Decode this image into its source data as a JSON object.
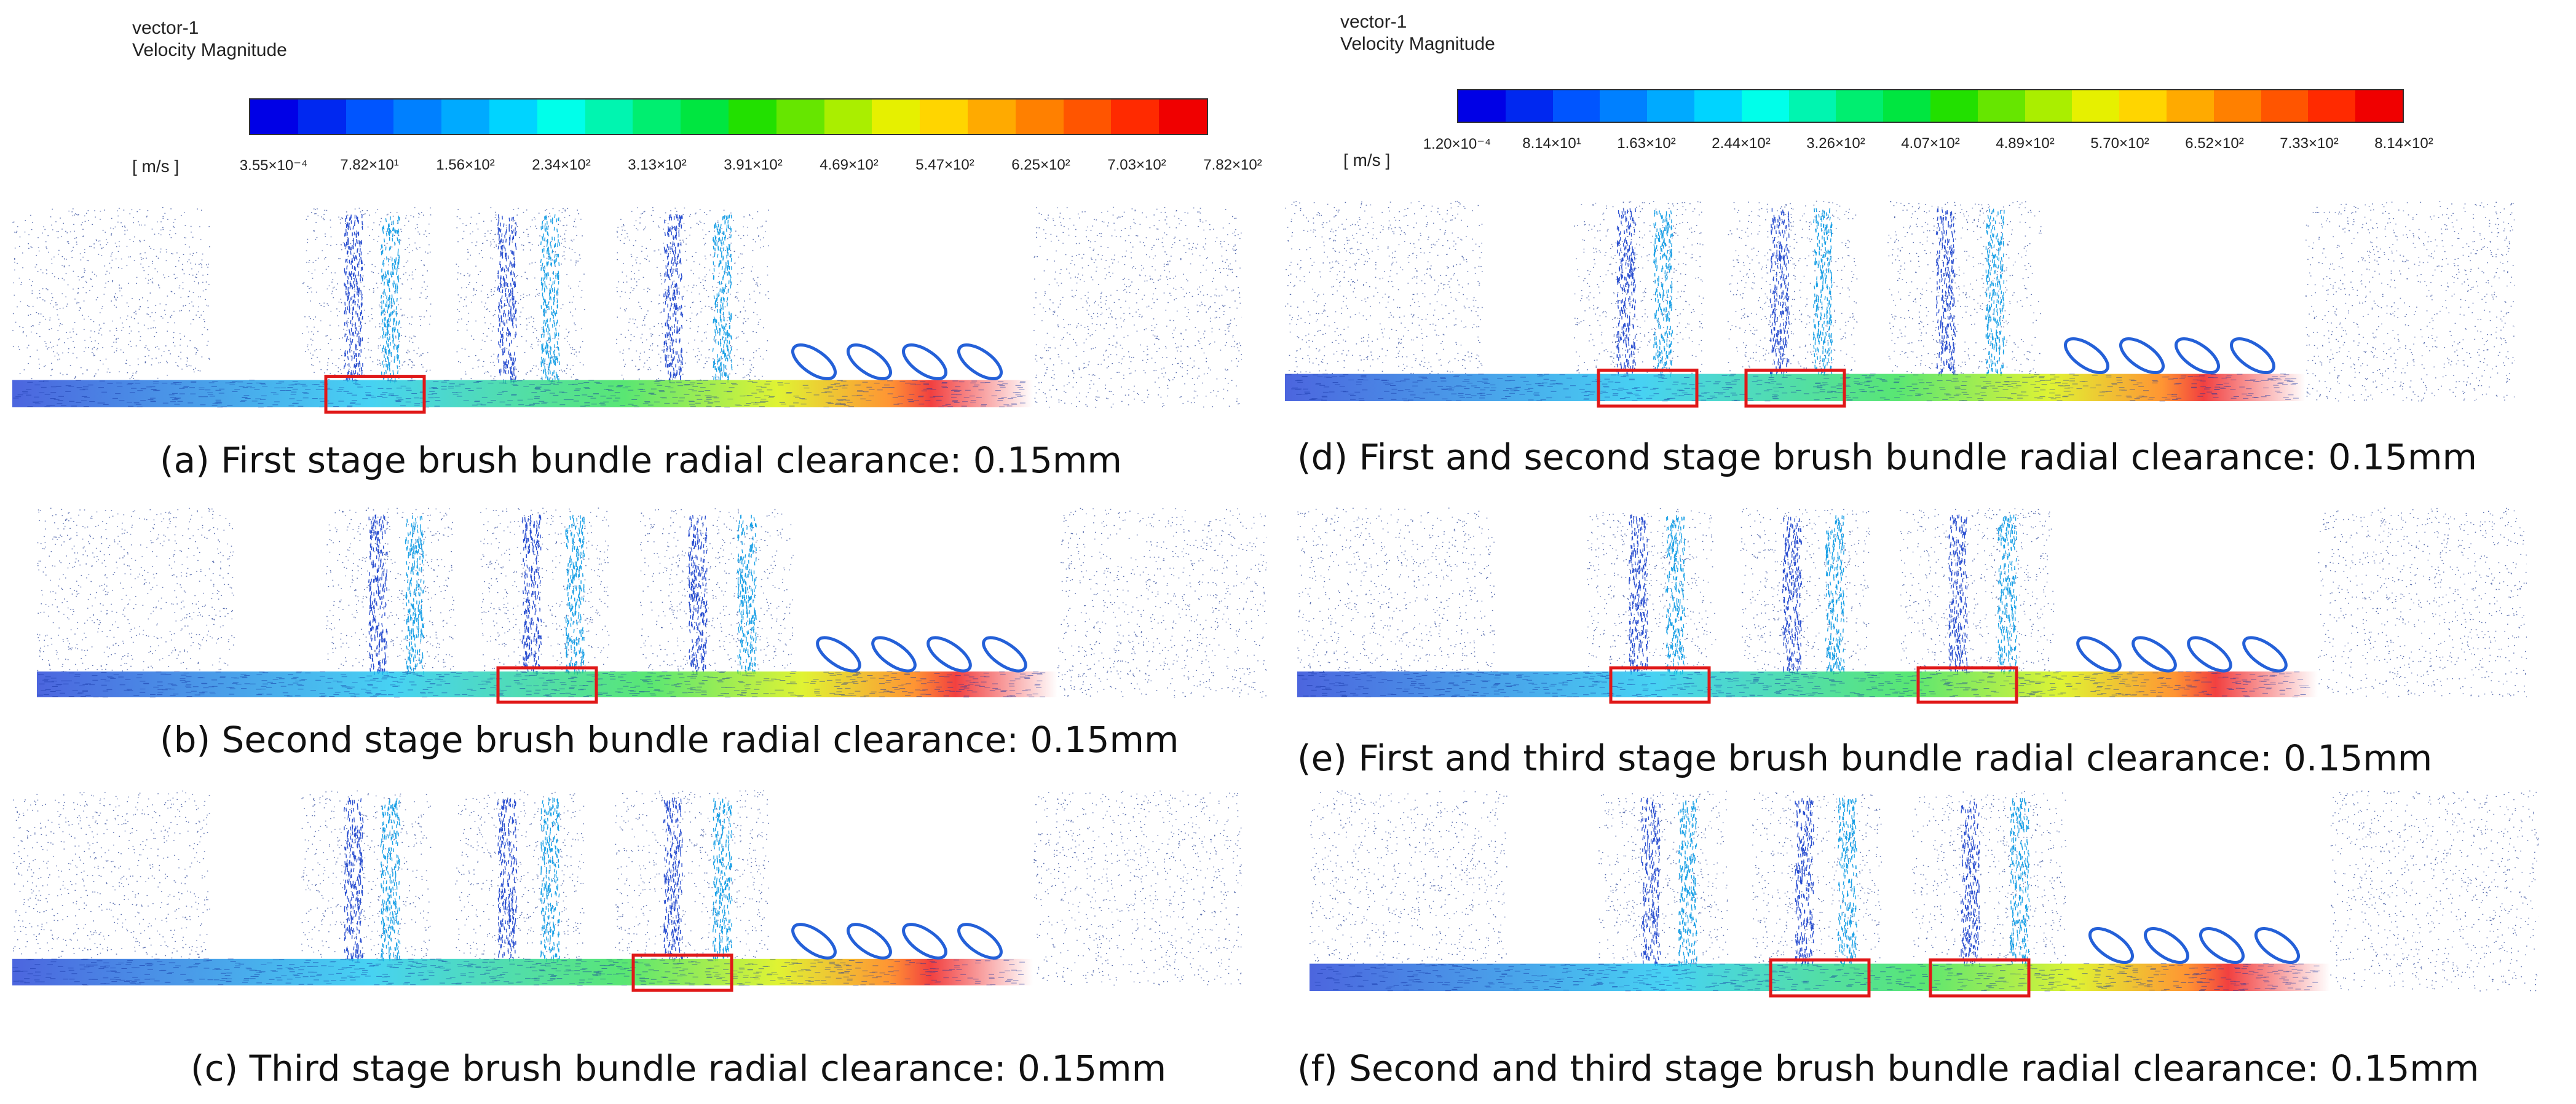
{
  "legends": [
    {
      "title_line1": "vector-1",
      "title_line2": "Velocity Magnitude",
      "unit": "[ m/s ]",
      "ticks": [
        "3.55×10⁻⁴",
        "7.82×10¹",
        "1.56×10²",
        "2.34×10²",
        "3.13×10²",
        "3.91×10²",
        "4.69×10²",
        "5.47×10²",
        "6.25×10²",
        "7.03×10²",
        "7.82×10²"
      ]
    },
    {
      "title_line1": "vector-1",
      "title_line2": "Velocity Magnitude",
      "unit": "[ m/s ]",
      "ticks": [
        "1.20×10⁻⁴",
        "8.14×10¹",
        "1.63×10²",
        "2.44×10²",
        "3.26×10²",
        "4.07×10²",
        "4.89×10²",
        "5.70×10²",
        "6.52×10²",
        "7.33×10²",
        "8.14×10²"
      ]
    }
  ],
  "colormap": [
    "#0000e6",
    "#0028f0",
    "#0055ff",
    "#0080ff",
    "#00aaff",
    "#00d4ff",
    "#00ffea",
    "#00f5b0",
    "#00ee70",
    "#00e640",
    "#22e000",
    "#66e600",
    "#aaee00",
    "#e6f000",
    "#ffd500",
    "#ffaa00",
    "#ff8000",
    "#ff5500",
    "#ff2a00",
    "#f00000"
  ],
  "captions": {
    "a": "(a) First stage brush bundle radial clearance: 0.15mm",
    "b": "(b) Second stage brush bundle radial clearance: 0.15mm",
    "c": "(c) Third stage brush bundle radial clearance: 0.15mm",
    "d": "(d) First and second stage brush bundle radial clearance: 0.15mm",
    "e": "(e) First and third stage brush bundle radial clearance: 0.15mm",
    "f": "(f) Second and third stage brush bundle radial clearance: 0.15mm"
  },
  "panels": {
    "a": {
      "highlighted_stages": [
        1
      ]
    },
    "b": {
      "highlighted_stages": [
        2
      ]
    },
    "c": {
      "highlighted_stages": [
        3
      ]
    },
    "d": {
      "highlighted_stages": [
        1,
        2
      ]
    },
    "e": {
      "highlighted_stages": [
        1,
        3
      ]
    },
    "f": {
      "highlighted_stages": [
        2,
        3
      ]
    }
  }
}
